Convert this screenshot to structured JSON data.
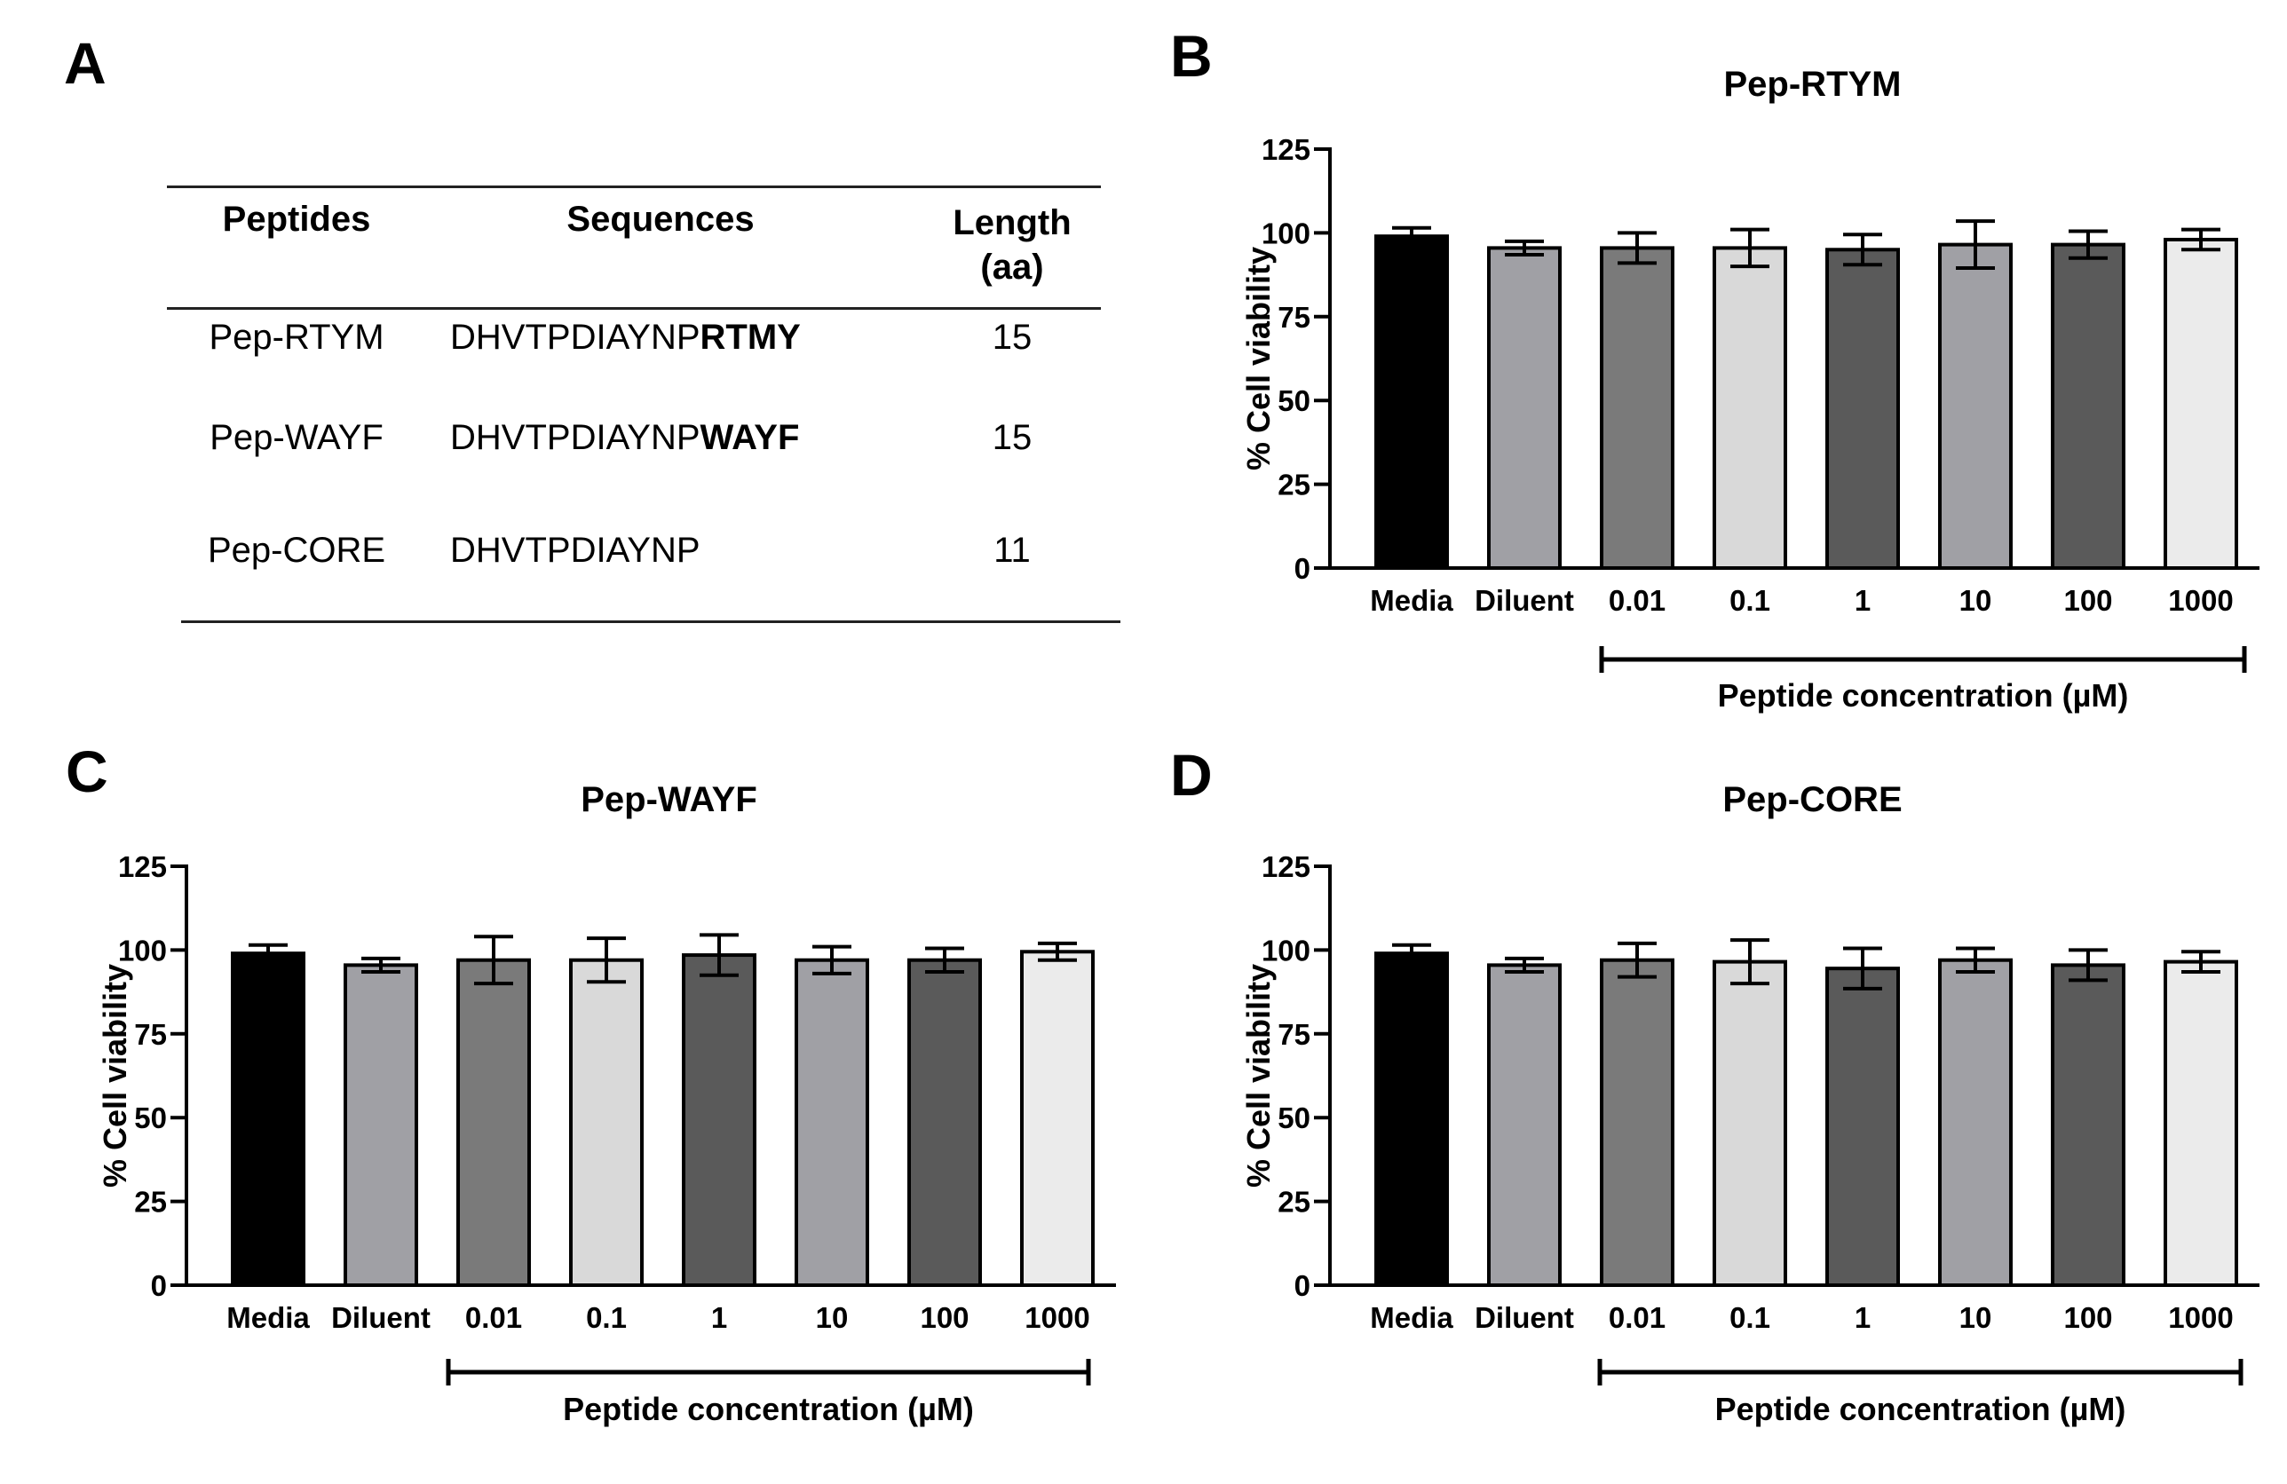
{
  "panels": {
    "a": {
      "letter": "A"
    },
    "b": {
      "letter": "B"
    },
    "c": {
      "letter": "C"
    },
    "d": {
      "letter": "D"
    }
  },
  "table": {
    "headers": {
      "peptides": "Peptides",
      "sequences": "Sequences",
      "length_line1": "Length",
      "length_line2": "(aa)"
    },
    "rows": [
      {
        "peptide": "Pep-RTYM",
        "seq_base": "DHVTPDIAYNP",
        "seq_bold": "RTMY",
        "length": "15"
      },
      {
        "peptide": "Pep-WAYF",
        "seq_base": "DHVTPDIAYNP",
        "seq_bold": "WAYF",
        "length": "15"
      },
      {
        "peptide": "Pep-CORE",
        "seq_base": "DHVTPDIAYNP",
        "seq_bold": "",
        "length": "11"
      }
    ]
  },
  "colors": {
    "axis": "#000000",
    "bars": [
      "#000000",
      "#a0a0a5",
      "#7a7a7a",
      "#d9d9d9",
      "#5a5a5a",
      "#a0a0a5",
      "#5a5a5a",
      "#ebebeb"
    ]
  },
  "chart_data": [
    {
      "id": "b",
      "type": "bar",
      "title": "Pep-RTYM",
      "ylabel": "% Cell viability",
      "xlabel": "Peptide concentration (µM)",
      "ylim": [
        0,
        125
      ],
      "yticks": [
        "0",
        "25",
        "50",
        "75",
        "100",
        "125"
      ],
      "categories": [
        "Media",
        "Diluent",
        "0.01",
        "0.1",
        "1",
        "10",
        "100",
        "1000"
      ],
      "values": [
        99,
        95.5,
        95.5,
        95.5,
        95,
        96.5,
        96.5,
        98
      ],
      "errors": [
        2.5,
        2,
        4.5,
        5.5,
        4.5,
        7,
        4,
        3
      ]
    },
    {
      "id": "c",
      "type": "bar",
      "title": "Pep-WAYF",
      "ylabel": "% Cell viability",
      "xlabel": "Peptide concentration (µM)",
      "ylim": [
        0,
        125
      ],
      "yticks": [
        "0",
        "25",
        "50",
        "75",
        "100",
        "125"
      ],
      "categories": [
        "Media",
        "Diluent",
        "0.01",
        "0.1",
        "1",
        "10",
        "100",
        "1000"
      ],
      "values": [
        99,
        95.5,
        97,
        97,
        98.5,
        97,
        97,
        99.5
      ],
      "errors": [
        2.5,
        2,
        7,
        6.5,
        6,
        4,
        3.5,
        2.5
      ]
    },
    {
      "id": "d",
      "type": "bar",
      "title": "Pep-CORE",
      "ylabel": "% Cell viability",
      "xlabel": "Peptide concentration (µM)",
      "ylim": [
        0,
        125
      ],
      "yticks": [
        "0",
        "25",
        "50",
        "75",
        "100",
        "125"
      ],
      "categories": [
        "Media",
        "Diluent",
        "0.01",
        "0.1",
        "1",
        "10",
        "100",
        "1000"
      ],
      "values": [
        99,
        95.5,
        97,
        96.5,
        94.5,
        97,
        95.5,
        96.5
      ],
      "errors": [
        2.5,
        2,
        5,
        6.5,
        6,
        3.5,
        4.5,
        3
      ]
    }
  ]
}
